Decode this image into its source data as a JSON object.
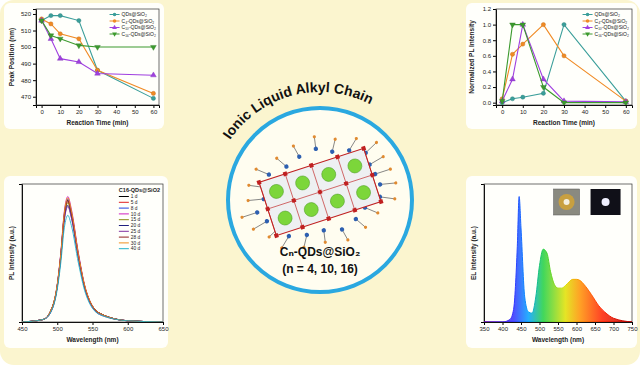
{
  "chart_data": [
    {
      "type": "line",
      "x_label": "Reaction Time (min)",
      "y_label": "Peak Position (nm)",
      "x": [
        0,
        5,
        10,
        20,
        30,
        60
      ],
      "xlim": [
        -3,
        63
      ],
      "xticks": [
        0,
        10,
        20,
        30,
        40,
        50,
        60
      ],
      "ylim": [
        465,
        523
      ],
      "yticks": [
        470,
        480,
        490,
        500,
        510,
        520
      ],
      "legend": "upper right",
      "series": [
        {
          "name": "QDs@SiO₂",
          "color": "#3a9e9a",
          "marker": "circle",
          "values": [
            516,
            519,
            519,
            516,
            486,
            469
          ]
        },
        {
          "name": "C₄-QDs@SiO₂",
          "color": "#f08a24",
          "marker": "circle",
          "values": [
            517,
            514,
            508,
            505,
            486,
            472
          ]
        },
        {
          "name": "C₁₀-QDs@SiO₂",
          "color": "#a040e0",
          "marker": "triangle",
          "values": [
            516,
            505,
            493,
            491,
            484,
            483
          ]
        },
        {
          "name": "C₁₆-QDs@SiO₂",
          "color": "#3c9a2e",
          "marker": "triangle-down",
          "values": [
            516,
            507,
            505,
            501,
            500,
            500
          ]
        }
      ]
    },
    {
      "type": "line",
      "x_label": "Reaction Time (min)",
      "y_label": "Normalized PL Intensity",
      "x": [
        0,
        5,
        10,
        20,
        30,
        60
      ],
      "xlim": [
        -3,
        63
      ],
      "xticks": [
        0,
        10,
        20,
        30,
        40,
        50,
        60
      ],
      "ylim": [
        -0.03,
        1.2
      ],
      "yticks": [
        {
          "value": 0,
          "label": "0.0"
        },
        {
          "value": 0.2,
          "label": "0.2"
        },
        {
          "value": 0.4,
          "label": "0.4"
        },
        {
          "value": 0.6,
          "label": "0.6"
        },
        {
          "value": 0.8,
          "label": "0.8"
        },
        {
          "value": 1,
          "label": "1.0"
        },
        {
          "value": 1.2,
          "label": "1.2"
        }
      ],
      "legend": "upper right",
      "series": [
        {
          "name": "QDs@SiO₂",
          "color": "#3a9e9a",
          "marker": "circle",
          "values": [
            0,
            0.05,
            0.07,
            0.12,
            1.0,
            0.02
          ]
        },
        {
          "name": "C₄-QDs@SiO₂",
          "color": "#f08a24",
          "marker": "circle",
          "values": [
            0.05,
            0.62,
            0.75,
            1.0,
            0.6,
            0.02
          ]
        },
        {
          "name": "C₁₀-QDs@SiO₂",
          "color": "#a040e0",
          "marker": "triangle",
          "values": [
            0.02,
            0.3,
            1.0,
            0.3,
            0.02,
            0.01
          ]
        },
        {
          "name": "C₁₆-QDs@SiO₂",
          "color": "#3c9a2e",
          "marker": "triangle-down",
          "values": [
            0.02,
            1.0,
            1.0,
            0.2,
            0,
            0
          ]
        }
      ]
    },
    {
      "type": "line",
      "title": "C16-QDs@SiO2",
      "x_label": "Wavelength (nm)",
      "y_label": "PL Intensity (a.u.)",
      "x": [
        450,
        480,
        490,
        500,
        505,
        510,
        515,
        520,
        530,
        540,
        560,
        600,
        650
      ],
      "xlim": [
        450,
        650
      ],
      "xticks": [
        450,
        500,
        550,
        600,
        650
      ],
      "ylim": [
        0,
        1.1
      ],
      "tick_labels": "x",
      "legend": "upper right",
      "series": [
        {
          "name": "1 d",
          "color": "#000000",
          "values": [
            0,
            0.02,
            0.08,
            0.29,
            0.53,
            0.85,
            0.97,
            0.87,
            0.53,
            0.26,
            0.07,
            0.01,
            0
          ]
        },
        {
          "name": "5 d",
          "color": "#e02020",
          "values": [
            0,
            0.02,
            0.08,
            0.29,
            0.53,
            0.84,
            0.96,
            0.86,
            0.53,
            0.26,
            0.07,
            0.01,
            0
          ]
        },
        {
          "name": "8 d",
          "color": "#2040e0",
          "values": [
            0,
            0.02,
            0.08,
            0.29,
            0.54,
            0.86,
            0.98,
            0.88,
            0.54,
            0.26,
            0.07,
            0.01,
            0
          ]
        },
        {
          "name": "10 d",
          "color": "#d020c0",
          "values": [
            0,
            0.02,
            0.08,
            0.3,
            0.55,
            0.88,
            1.0,
            0.9,
            0.55,
            0.27,
            0.07,
            0.01,
            0
          ]
        },
        {
          "name": "15 d",
          "color": "#8a8a10",
          "values": [
            0,
            0.02,
            0.08,
            0.29,
            0.52,
            0.84,
            0.95,
            0.86,
            0.52,
            0.26,
            0.07,
            0.01,
            0
          ]
        },
        {
          "name": "20 d",
          "color": "#202080",
          "values": [
            0,
            0.02,
            0.07,
            0.28,
            0.51,
            0.82,
            0.93,
            0.84,
            0.51,
            0.25,
            0.07,
            0.01,
            0
          ]
        },
        {
          "name": "25 d",
          "color": "#8030a0",
          "values": [
            0,
            0.02,
            0.07,
            0.28,
            0.51,
            0.81,
            0.92,
            0.83,
            0.51,
            0.25,
            0.06,
            0.01,
            0
          ]
        },
        {
          "name": "28 d",
          "color": "#902020",
          "values": [
            0,
            0.02,
            0.08,
            0.29,
            0.53,
            0.85,
            0.97,
            0.87,
            0.53,
            0.26,
            0.07,
            0.01,
            0
          ]
        },
        {
          "name": "30 d",
          "color": "#f09020",
          "values": [
            0,
            0.02,
            0.08,
            0.3,
            0.54,
            0.87,
            0.99,
            0.89,
            0.54,
            0.27,
            0.07,
            0.01,
            0
          ]
        },
        {
          "name": "40 d",
          "color": "#20b0c8",
          "values": [
            0,
            0.02,
            0.07,
            0.26,
            0.47,
            0.75,
            0.85,
            0.77,
            0.47,
            0.23,
            0.06,
            0.01,
            0
          ]
        }
      ]
    },
    {
      "type": "area",
      "x_label": "Wavelength (nm)",
      "y_label": "EL Intensity (a.u.)",
      "x": [
        350,
        400,
        420,
        430,
        440,
        445,
        450,
        460,
        470,
        480,
        490,
        500,
        510,
        520,
        530,
        540,
        550,
        560,
        570,
        580,
        590,
        600,
        610,
        620,
        640,
        660,
        680,
        700,
        750
      ],
      "xlim": [
        350,
        750
      ],
      "xticks": [
        350,
        400,
        450,
        500,
        550,
        600,
        650,
        700,
        750
      ],
      "ylim": [
        0,
        1.1
      ],
      "tick_labels": "x",
      "series": [
        {
          "values": [
            0,
            0,
            0.02,
            0.1,
            0.6,
            1.0,
            0.75,
            0.2,
            0.08,
            0.07,
            0.2,
            0.45,
            0.58,
            0.55,
            0.4,
            0.3,
            0.27,
            0.27,
            0.29,
            0.32,
            0.34,
            0.34,
            0.33,
            0.3,
            0.22,
            0.13,
            0.07,
            0.03,
            0
          ]
        }
      ]
    }
  ],
  "diagram": {
    "title": "Ionic Liquid Alkyl Chain",
    "lines": [
      "Cₙ-QDs@SiO₂",
      "(n = 4, 10, 16)"
    ]
  }
}
